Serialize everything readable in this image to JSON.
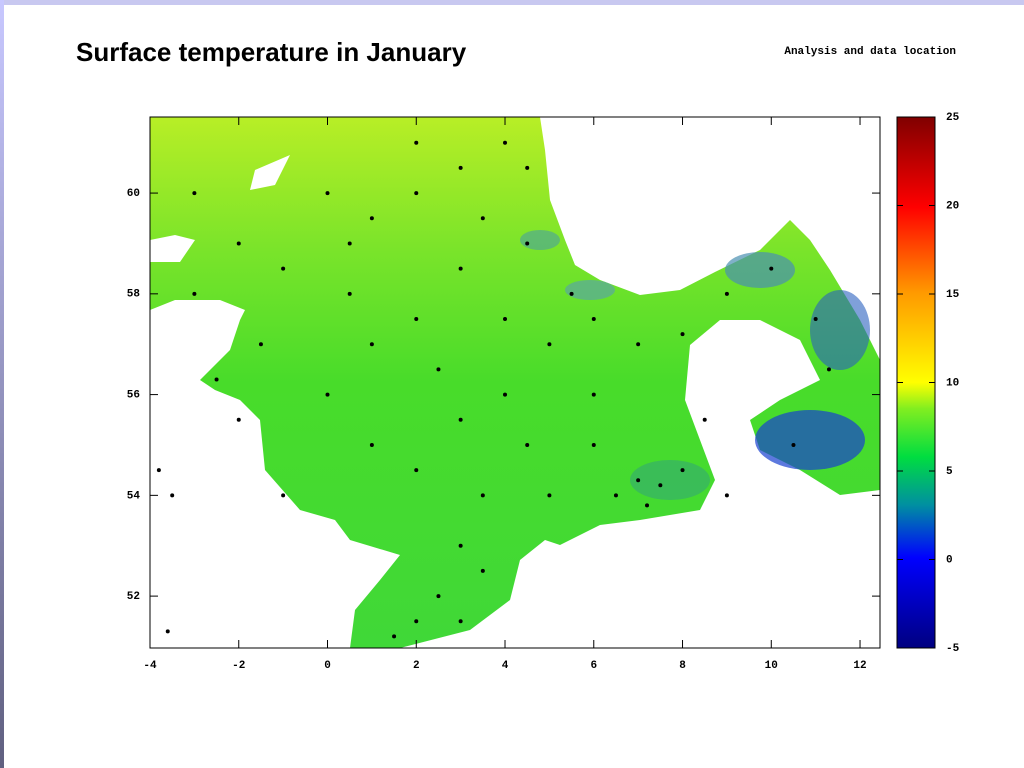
{
  "chart_data": {
    "type": "scatter",
    "title": "Surface temperature in January",
    "subtitle": "Analysis and data location",
    "x": [
      0,
      1,
      2,
      3,
      4,
      -3,
      -2,
      0.5,
      2,
      3,
      4.5,
      5,
      6,
      7,
      8,
      9,
      10,
      11,
      11.3,
      10.5,
      0,
      1,
      2,
      3,
      4,
      5,
      6,
      7,
      7.5,
      8,
      6.5,
      7.2,
      3,
      3.5,
      2.5,
      2,
      3,
      1.5,
      -1,
      -2,
      -2.5,
      -3.5,
      -3.8,
      1,
      2.5,
      4,
      5.5,
      3.5,
      4.5,
      6,
      -1,
      -3,
      -1.5,
      0.5,
      2,
      3.5,
      4.5,
      8.5,
      9,
      -3.6
    ],
    "y": [
      60,
      59.5,
      61,
      60.5,
      61,
      60,
      59,
      58,
      57.5,
      58.5,
      59,
      57,
      57.5,
      57,
      57.2,
      58,
      58.5,
      57.5,
      56.5,
      55,
      56,
      55,
      54.5,
      55.5,
      56,
      54,
      55,
      54.3,
      54.2,
      54.5,
      54,
      53.8,
      53,
      52.5,
      52,
      51.5,
      51.5,
      51.2,
      54,
      55.5,
      56.3,
      54,
      54.5,
      57,
      56.5,
      57.5,
      58,
      54,
      55,
      56,
      58.5,
      58,
      57,
      59,
      60,
      59.5,
      60.5,
      55.5,
      54,
      51.3
    ],
    "color": "#000000",
    "xlim": [
      -4,
      12.45
    ],
    "ylim": [
      50.97,
      61.51
    ],
    "xticks": [
      -4,
      -2,
      0,
      2,
      4,
      6,
      8,
      10,
      12
    ],
    "yticks": [
      52,
      54,
      56,
      58,
      60
    ],
    "colorbar": {
      "lim": [
        -5,
        25
      ],
      "ticks": [
        -5,
        0,
        5,
        10,
        15,
        20,
        25
      ]
    }
  }
}
